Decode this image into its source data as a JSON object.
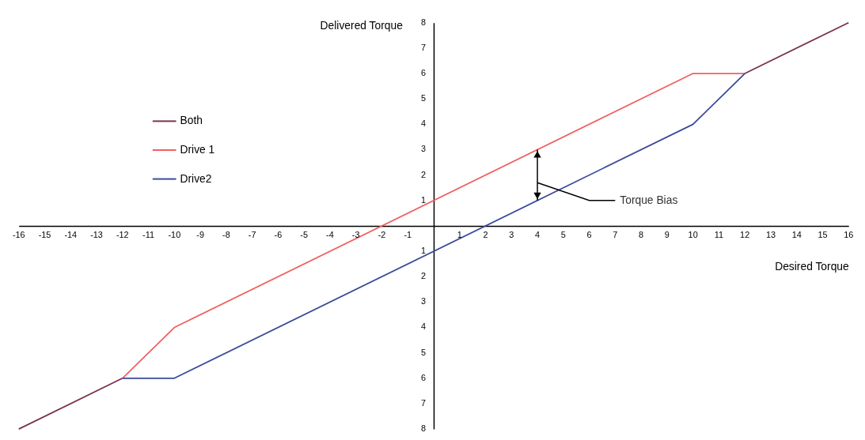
{
  "chart_data": {
    "type": "line",
    "xlabel": "Desired Torque",
    "ylabel": "Delivered Torque",
    "xlim": [
      -16,
      16
    ],
    "ylim": [
      -8,
      8
    ],
    "xticks": [
      -16,
      -15,
      -14,
      -13,
      -12,
      -11,
      -10,
      -9,
      -8,
      -7,
      -6,
      -5,
      -4,
      -3,
      -2,
      -1,
      1,
      2,
      3,
      4,
      5,
      6,
      7,
      8,
      9,
      10,
      11,
      12,
      13,
      14,
      15,
      16
    ],
    "yticks": [
      {
        "value": -8,
        "label": "8"
      },
      {
        "value": -7,
        "label": "7"
      },
      {
        "value": -6,
        "label": "6"
      },
      {
        "value": -5,
        "label": "5"
      },
      {
        "value": -4,
        "label": "4"
      },
      {
        "value": -3,
        "label": "3"
      },
      {
        "value": -2,
        "label": "2"
      },
      {
        "value": -1,
        "label": "1"
      },
      1,
      2,
      3,
      4,
      5,
      6,
      7,
      8
    ],
    "grid": false,
    "legend": "top left",
    "marker": "none",
    "line_style": "solid",
    "series": [
      {
        "name": "Both",
        "color": "#7a3050",
        "x": [
          -16,
          -12,
          0,
          12,
          16
        ],
        "values": [
          -8,
          -6,
          null,
          6,
          8
        ]
      },
      {
        "name": "Drive 1",
        "color": "#f06060",
        "x": [
          -12,
          -10,
          10,
          12
        ],
        "values": [
          -6,
          -4,
          6,
          6
        ]
      },
      {
        "name": "Drive2",
        "color": "#3a4a9a",
        "x": [
          -12,
          -10,
          10,
          12
        ],
        "values": [
          -6,
          -6,
          4,
          6
        ]
      }
    ],
    "annotations": [
      "Torque Bias"
    ]
  }
}
